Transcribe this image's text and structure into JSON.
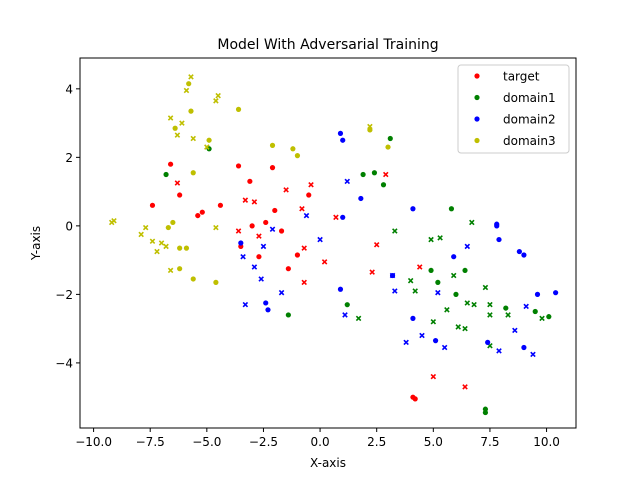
{
  "chart_data": {
    "type": "scatter",
    "title": "Model With Adversarial Training",
    "xlabel": "X-axis",
    "ylabel": "Y-axis",
    "xlim": [
      -10.6,
      11.3
    ],
    "ylim": [
      -5.9,
      4.9
    ],
    "xticks": [
      -10.0,
      -7.5,
      -5.0,
      -2.5,
      0.0,
      2.5,
      5.0,
      7.5,
      10.0
    ],
    "xtick_labels": [
      "−10.0",
      "−7.5",
      "−5.0",
      "−2.5",
      "0.0",
      "2.5",
      "5.0",
      "7.5",
      "10.0"
    ],
    "yticks": [
      -4,
      -2,
      0,
      2,
      4
    ],
    "ytick_labels": [
      "−4",
      "−2",
      "0",
      "2",
      "4"
    ],
    "grid": false,
    "legend_position": "top-right",
    "series": [
      {
        "name": "target",
        "color": "#ff0000",
        "points": [
          {
            "x": -7.4,
            "y": 0.6,
            "m": "o"
          },
          {
            "x": -6.6,
            "y": 1.8,
            "m": "o"
          },
          {
            "x": -6.2,
            "y": 0.9,
            "m": "o"
          },
          {
            "x": -5.4,
            "y": 0.3,
            "m": "o"
          },
          {
            "x": -5.2,
            "y": 0.4,
            "m": "o"
          },
          {
            "x": -4.4,
            "y": 0.6,
            "m": "o"
          },
          {
            "x": -3.6,
            "y": 1.75,
            "m": "o"
          },
          {
            "x": -3.1,
            "y": 1.3,
            "m": "o"
          },
          {
            "x": -2.1,
            "y": 1.7,
            "m": "o"
          },
          {
            "x": -3.0,
            "y": 0.0,
            "m": "o"
          },
          {
            "x": -2.4,
            "y": 0.1,
            "m": "o"
          },
          {
            "x": -2.0,
            "y": 0.45,
            "m": "o"
          },
          {
            "x": -1.7,
            "y": -0.15,
            "m": "o"
          },
          {
            "x": -3.5,
            "y": -0.6,
            "m": "o"
          },
          {
            "x": -2.7,
            "y": -0.9,
            "m": "o"
          },
          {
            "x": -1.4,
            "y": -1.25,
            "m": "o"
          },
          {
            "x": -1.0,
            "y": -0.85,
            "m": "o"
          },
          {
            "x": -0.5,
            "y": 0.9,
            "m": "o"
          },
          {
            "x": 4.1,
            "y": -5.0,
            "m": "o"
          },
          {
            "x": 4.2,
            "y": -5.05,
            "m": "o"
          },
          {
            "x": -6.3,
            "y": 1.25,
            "m": "x"
          },
          {
            "x": -3.6,
            "y": -0.15,
            "m": "x"
          },
          {
            "x": -3.3,
            "y": 0.75,
            "m": "x"
          },
          {
            "x": -2.9,
            "y": 0.7,
            "m": "x"
          },
          {
            "x": -2.7,
            "y": -0.3,
            "m": "x"
          },
          {
            "x": -1.5,
            "y": 1.05,
            "m": "x"
          },
          {
            "x": -0.8,
            "y": 0.5,
            "m": "x"
          },
          {
            "x": -0.4,
            "y": 1.2,
            "m": "x"
          },
          {
            "x": -0.7,
            "y": -0.65,
            "m": "x"
          },
          {
            "x": -0.7,
            "y": -1.65,
            "m": "x"
          },
          {
            "x": 0.2,
            "y": -1.05,
            "m": "x"
          },
          {
            "x": 0.7,
            "y": 0.25,
            "m": "x"
          },
          {
            "x": 2.3,
            "y": -1.35,
            "m": "x"
          },
          {
            "x": 2.5,
            "y": -0.55,
            "m": "x"
          },
          {
            "x": 2.9,
            "y": 1.5,
            "m": "x"
          },
          {
            "x": 4.4,
            "y": -1.2,
            "m": "x"
          },
          {
            "x": 5.0,
            "y": -4.4,
            "m": "x"
          },
          {
            "x": 6.4,
            "y": -4.7,
            "m": "x"
          }
        ]
      },
      {
        "name": "domain1",
        "color": "#008000",
        "points": [
          {
            "x": -6.8,
            "y": 1.5,
            "m": "o"
          },
          {
            "x": -4.9,
            "y": 2.25,
            "m": "o"
          },
          {
            "x": -1.4,
            "y": -2.6,
            "m": "o"
          },
          {
            "x": 1.2,
            "y": -2.3,
            "m": "o"
          },
          {
            "x": 1.9,
            "y": 1.5,
            "m": "o"
          },
          {
            "x": 2.4,
            "y": 1.55,
            "m": "o"
          },
          {
            "x": 2.8,
            "y": 1.2,
            "m": "o"
          },
          {
            "x": 3.1,
            "y": 2.55,
            "m": "o"
          },
          {
            "x": 4.9,
            "y": -1.3,
            "m": "o"
          },
          {
            "x": 5.2,
            "y": -1.65,
            "m": "o"
          },
          {
            "x": 5.8,
            "y": 0.5,
            "m": "o"
          },
          {
            "x": 6.0,
            "y": -2.0,
            "m": "o"
          },
          {
            "x": 6.4,
            "y": -1.3,
            "m": "o"
          },
          {
            "x": 7.3,
            "y": -5.35,
            "m": "o"
          },
          {
            "x": 7.3,
            "y": -5.45,
            "m": "o"
          },
          {
            "x": 8.2,
            "y": -2.4,
            "m": "o"
          },
          {
            "x": 9.5,
            "y": -2.5,
            "m": "o"
          },
          {
            "x": 10.1,
            "y": -2.65,
            "m": "o"
          },
          {
            "x": 1.7,
            "y": -2.7,
            "m": "x"
          },
          {
            "x": 3.3,
            "y": -0.15,
            "m": "x"
          },
          {
            "x": 4.0,
            "y": -1.6,
            "m": "x"
          },
          {
            "x": 4.2,
            "y": -1.9,
            "m": "x"
          },
          {
            "x": 4.9,
            "y": -0.4,
            "m": "x"
          },
          {
            "x": 5.3,
            "y": -0.35,
            "m": "x"
          },
          {
            "x": 5.0,
            "y": -2.8,
            "m": "x"
          },
          {
            "x": 5.6,
            "y": -2.45,
            "m": "x"
          },
          {
            "x": 5.9,
            "y": -1.45,
            "m": "x"
          },
          {
            "x": 6.1,
            "y": -2.95,
            "m": "x"
          },
          {
            "x": 6.4,
            "y": -3.0,
            "m": "x"
          },
          {
            "x": 6.7,
            "y": 0.1,
            "m": "x"
          },
          {
            "x": 6.5,
            "y": -2.25,
            "m": "x"
          },
          {
            "x": 6.8,
            "y": -2.3,
            "m": "x"
          },
          {
            "x": 7.3,
            "y": -1.8,
            "m": "x"
          },
          {
            "x": 7.5,
            "y": -2.3,
            "m": "x"
          },
          {
            "x": 7.5,
            "y": -2.6,
            "m": "x"
          },
          {
            "x": 7.5,
            "y": -3.5,
            "m": "x"
          },
          {
            "x": 8.3,
            "y": -2.6,
            "m": "x"
          },
          {
            "x": 9.8,
            "y": -2.7,
            "m": "x"
          }
        ]
      },
      {
        "name": "domain2",
        "color": "#0000ff",
        "points": [
          {
            "x": -3.5,
            "y": -0.5,
            "m": "o"
          },
          {
            "x": -2.4,
            "y": -2.25,
            "m": "o"
          },
          {
            "x": -2.3,
            "y": -2.45,
            "m": "o"
          },
          {
            "x": 0.9,
            "y": 2.7,
            "m": "o"
          },
          {
            "x": 1.0,
            "y": 2.5,
            "m": "o"
          },
          {
            "x": 1.0,
            "y": 0.25,
            "m": "o"
          },
          {
            "x": 0.9,
            "y": -1.85,
            "m": "o"
          },
          {
            "x": 1.8,
            "y": 0.8,
            "m": "o"
          },
          {
            "x": 3.2,
            "y": -1.45,
            "m": "o"
          },
          {
            "x": 4.1,
            "y": 0.5,
            "m": "o"
          },
          {
            "x": 4.1,
            "y": -2.7,
            "m": "o"
          },
          {
            "x": 5.1,
            "y": -3.35,
            "m": "o"
          },
          {
            "x": 5.9,
            "y": -0.9,
            "m": "o"
          },
          {
            "x": 7.4,
            "y": -3.4,
            "m": "o"
          },
          {
            "x": 7.8,
            "y": 0.0,
            "m": "o"
          },
          {
            "x": 7.8,
            "y": 0.05,
            "m": "o"
          },
          {
            "x": 7.9,
            "y": -0.4,
            "m": "o"
          },
          {
            "x": 8.8,
            "y": -0.75,
            "m": "o"
          },
          {
            "x": 9.0,
            "y": -0.85,
            "m": "o"
          },
          {
            "x": 9.0,
            "y": -3.55,
            "m": "o"
          },
          {
            "x": 9.6,
            "y": -2.0,
            "m": "o"
          },
          {
            "x": 10.4,
            "y": -1.95,
            "m": "o"
          },
          {
            "x": -3.4,
            "y": -0.9,
            "m": "x"
          },
          {
            "x": -3.3,
            "y": -2.3,
            "m": "x"
          },
          {
            "x": -2.9,
            "y": -1.2,
            "m": "x"
          },
          {
            "x": -2.6,
            "y": -1.55,
            "m": "x"
          },
          {
            "x": -2.5,
            "y": -0.6,
            "m": "x"
          },
          {
            "x": -2.1,
            "y": -0.1,
            "m": "x"
          },
          {
            "x": -1.7,
            "y": -1.95,
            "m": "x"
          },
          {
            "x": -0.6,
            "y": 0.3,
            "m": "x"
          },
          {
            "x": 0.0,
            "y": -0.4,
            "m": "x"
          },
          {
            "x": 1.1,
            "y": -2.6,
            "m": "x"
          },
          {
            "x": 1.2,
            "y": 1.3,
            "m": "x"
          },
          {
            "x": 3.2,
            "y": -1.45,
            "m": "x"
          },
          {
            "x": 3.3,
            "y": -1.9,
            "m": "x"
          },
          {
            "x": 3.8,
            "y": -3.4,
            "m": "x"
          },
          {
            "x": 4.5,
            "y": -3.2,
            "m": "x"
          },
          {
            "x": 5.2,
            "y": -1.95,
            "m": "x"
          },
          {
            "x": 5.5,
            "y": -3.55,
            "m": "x"
          },
          {
            "x": 6.5,
            "y": -0.6,
            "m": "x"
          },
          {
            "x": 7.9,
            "y": -3.65,
            "m": "x"
          },
          {
            "x": 8.6,
            "y": -3.05,
            "m": "x"
          },
          {
            "x": 9.1,
            "y": -2.35,
            "m": "x"
          },
          {
            "x": 9.4,
            "y": -3.75,
            "m": "x"
          }
        ]
      },
      {
        "name": "domain3",
        "color": "#bfbf00",
        "points": [
          {
            "x": -6.4,
            "y": 2.85,
            "m": "o"
          },
          {
            "x": -5.8,
            "y": 4.15,
            "m": "o"
          },
          {
            "x": -5.7,
            "y": 3.35,
            "m": "o"
          },
          {
            "x": -5.6,
            "y": 1.55,
            "m": "o"
          },
          {
            "x": -4.9,
            "y": 2.5,
            "m": "o"
          },
          {
            "x": -3.6,
            "y": 3.4,
            "m": "o"
          },
          {
            "x": -2.1,
            "y": 2.35,
            "m": "o"
          },
          {
            "x": -1.2,
            "y": 2.25,
            "m": "o"
          },
          {
            "x": -1.0,
            "y": 2.05,
            "m": "o"
          },
          {
            "x": 2.2,
            "y": 2.8,
            "m": "o"
          },
          {
            "x": 3.0,
            "y": 2.3,
            "m": "o"
          },
          {
            "x": -6.7,
            "y": -0.05,
            "m": "o"
          },
          {
            "x": -6.5,
            "y": 0.1,
            "m": "o"
          },
          {
            "x": -6.2,
            "y": -0.65,
            "m": "o"
          },
          {
            "x": -6.2,
            "y": -1.25,
            "m": "o"
          },
          {
            "x": -5.9,
            "y": -0.65,
            "m": "o"
          },
          {
            "x": -5.6,
            "y": -1.55,
            "m": "o"
          },
          {
            "x": -4.6,
            "y": -1.65,
            "m": "o"
          },
          {
            "x": -9.2,
            "y": 0.1,
            "m": "x"
          },
          {
            "x": -9.1,
            "y": 0.15,
            "m": "x"
          },
          {
            "x": -7.9,
            "y": -0.25,
            "m": "x"
          },
          {
            "x": -7.7,
            "y": -0.05,
            "m": "x"
          },
          {
            "x": -7.4,
            "y": -0.45,
            "m": "x"
          },
          {
            "x": -7.2,
            "y": -0.75,
            "m": "x"
          },
          {
            "x": -7.0,
            "y": -0.5,
            "m": "x"
          },
          {
            "x": -6.8,
            "y": -0.6,
            "m": "x"
          },
          {
            "x": -6.6,
            "y": -1.3,
            "m": "x"
          },
          {
            "x": -6.6,
            "y": 3.15,
            "m": "x"
          },
          {
            "x": -6.3,
            "y": 2.65,
            "m": "x"
          },
          {
            "x": -6.1,
            "y": 3.0,
            "m": "x"
          },
          {
            "x": -5.9,
            "y": 3.95,
            "m": "x"
          },
          {
            "x": -5.7,
            "y": 4.35,
            "m": "x"
          },
          {
            "x": -5.6,
            "y": 2.55,
            "m": "x"
          },
          {
            "x": -5.0,
            "y": 2.3,
            "m": "x"
          },
          {
            "x": -4.6,
            "y": 3.65,
            "m": "x"
          },
          {
            "x": -4.5,
            "y": 3.8,
            "m": "x"
          },
          {
            "x": -4.6,
            "y": -0.05,
            "m": "x"
          },
          {
            "x": 2.2,
            "y": 2.9,
            "m": "x"
          }
        ]
      }
    ]
  }
}
